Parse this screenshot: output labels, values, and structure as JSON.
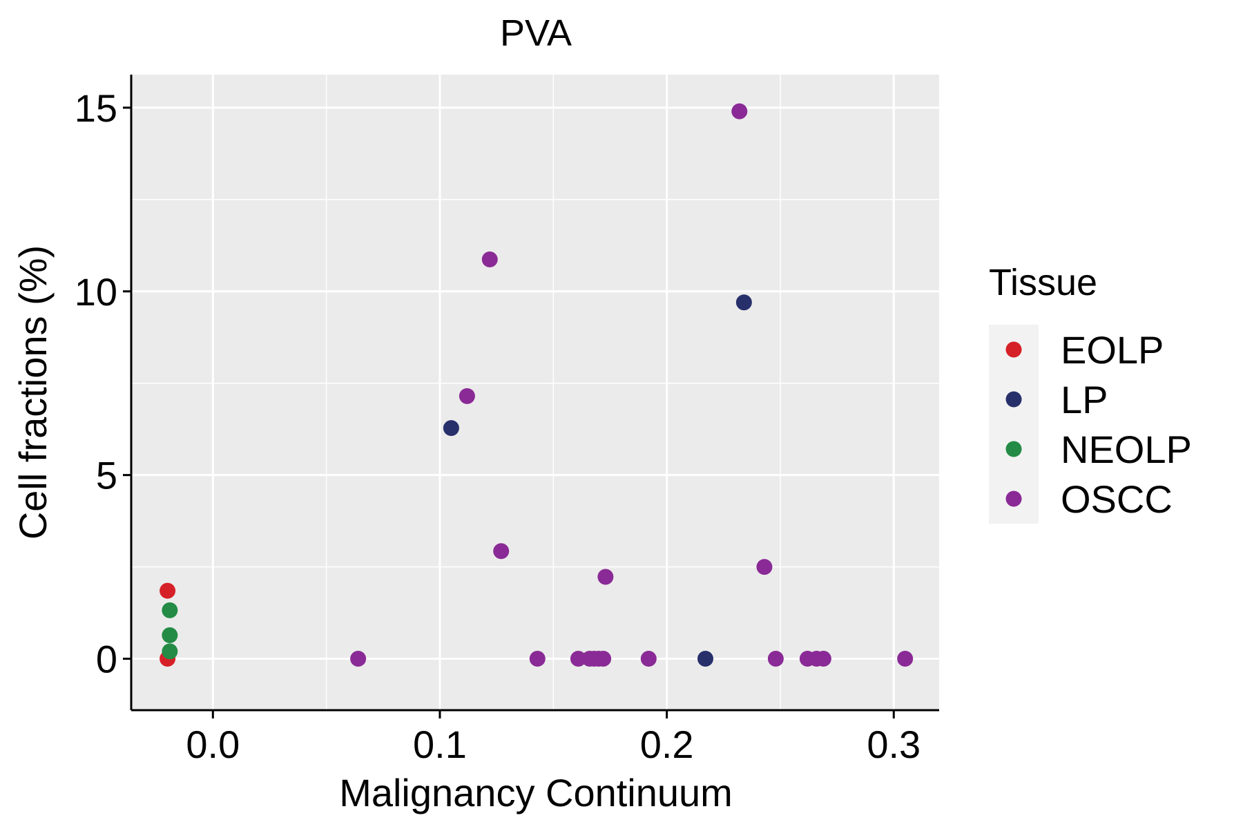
{
  "chart_data": {
    "type": "scatter",
    "title": "PVA",
    "xlabel": "Malignancy Continuum",
    "ylabel": "Cell fractions (%)",
    "xlim": [
      -0.036,
      0.32
    ],
    "ylim": [
      -1.4,
      15.9
    ],
    "x_ticks": [
      0.0,
      0.1,
      0.2,
      0.3
    ],
    "x_tick_labels": [
      "0.0",
      "0.1",
      "0.2",
      "0.3"
    ],
    "y_ticks": [
      0,
      5,
      10,
      15
    ],
    "y_tick_labels": [
      "0",
      "5",
      "10",
      "15"
    ],
    "grid": true,
    "legend": {
      "title": "Tissue",
      "position": "right",
      "entries": [
        {
          "name": "EOLP",
          "color": "#d62027"
        },
        {
          "name": "LP",
          "color": "#27306b"
        },
        {
          "name": "NEOLP",
          "color": "#238b45"
        },
        {
          "name": "OSCC",
          "color": "#8a2a96"
        }
      ]
    },
    "series": [
      {
        "name": "EOLP",
        "color": "#d62027",
        "x": [
          -0.02,
          -0.02
        ],
        "y": [
          1.85,
          0.0
        ]
      },
      {
        "name": "LP",
        "color": "#27306b",
        "x": [
          0.105,
          0.234,
          0.217
        ],
        "y": [
          6.28,
          9.7,
          0.0
        ]
      },
      {
        "name": "NEOLP",
        "color": "#238b45",
        "x": [
          -0.019,
          -0.019,
          -0.019
        ],
        "y": [
          1.32,
          0.64,
          0.2
        ]
      },
      {
        "name": "OSCC",
        "color": "#8a2a96",
        "x": [
          0.232,
          0.122,
          0.112,
          0.127,
          0.173,
          0.243,
          0.064,
          0.143,
          0.161,
          0.166,
          0.168,
          0.17,
          0.172,
          0.192,
          0.248,
          0.262,
          0.266,
          0.269,
          0.305
        ],
        "y": [
          14.9,
          10.87,
          7.15,
          2.93,
          2.23,
          2.5,
          0.0,
          0.0,
          0.0,
          0.0,
          0.0,
          0.0,
          0.0,
          0.0,
          0.0,
          0.0,
          0.0,
          0.0,
          0.0
        ]
      }
    ]
  }
}
